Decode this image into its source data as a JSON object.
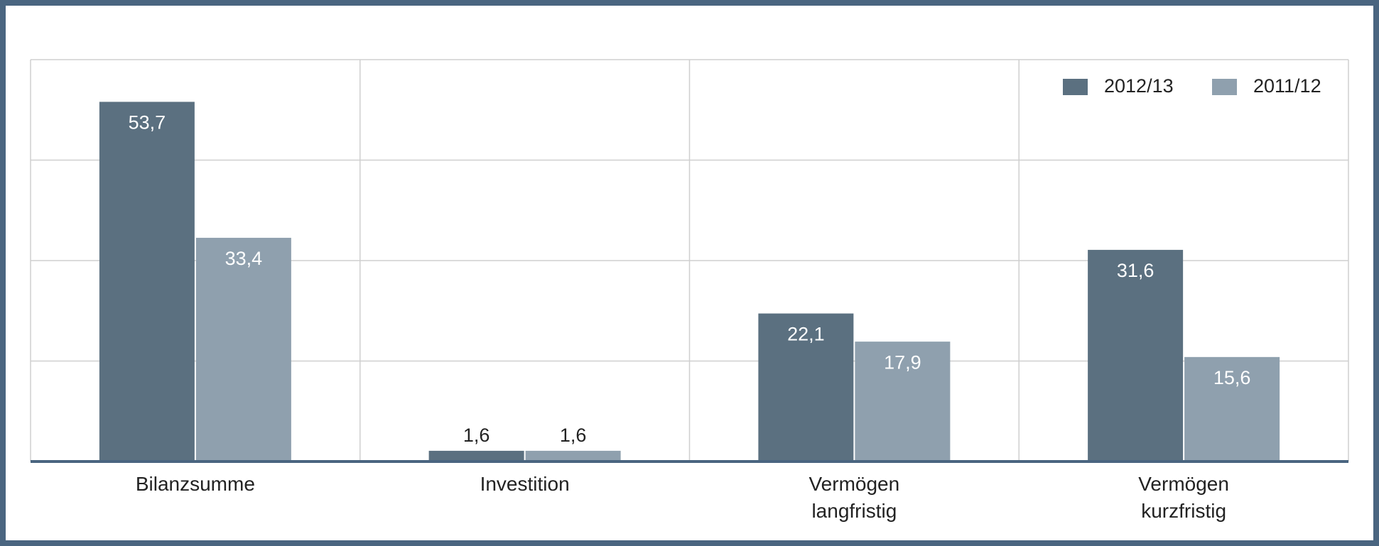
{
  "chart_data": {
    "type": "bar",
    "categories": [
      "Bilanzsumme",
      "Investition",
      "Vermögen langfristig",
      "Vermögen kurzfristig"
    ],
    "series": [
      {
        "name": "2012/13",
        "color": "#5b7080",
        "values": [
          53.7,
          1.6,
          22.1,
          31.6
        ],
        "value_labels": [
          "53,7",
          "1,6",
          "22,1",
          "31,6"
        ]
      },
      {
        "name": "2011/12",
        "color": "#8fa0ae",
        "values": [
          33.4,
          1.6,
          17.9,
          15.6
        ],
        "value_labels": [
          "33,4",
          "1,6",
          "17,9",
          "15,6"
        ]
      }
    ],
    "ylim": [
      0,
      60
    ],
    "yticks": [
      0,
      15,
      30,
      45,
      60
    ],
    "grid": true,
    "legend": "top-right"
  }
}
